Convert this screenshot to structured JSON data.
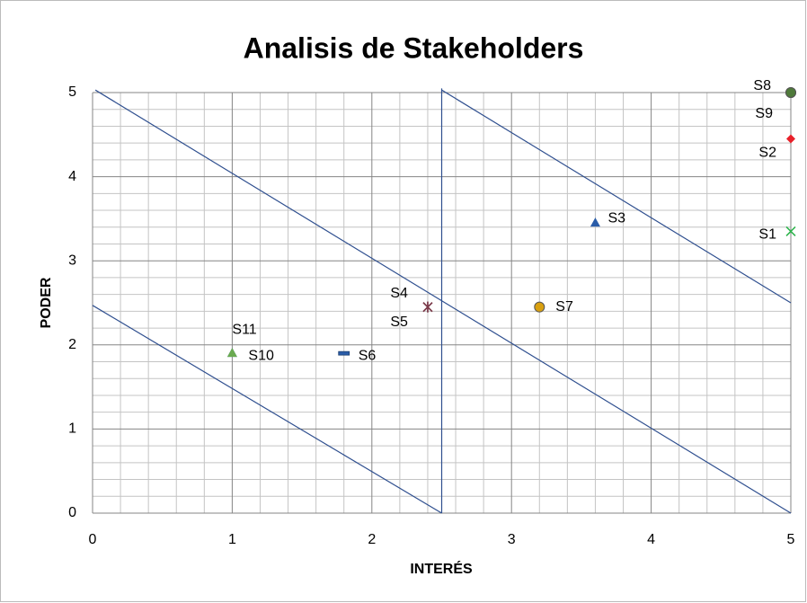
{
  "chart_data": {
    "type": "scatter",
    "title": "Analisis de Stakeholders",
    "xlabel": "INTERÉS",
    "ylabel": "PODER",
    "xlim": [
      0,
      5
    ],
    "ylim": [
      0,
      5
    ],
    "xticks": [
      0,
      1,
      2,
      3,
      4,
      5
    ],
    "yticks": [
      0,
      1,
      2,
      3,
      4,
      5
    ],
    "grid": true,
    "series": [
      {
        "name": "S1",
        "color": "#2bb34a",
        "marker": "x",
        "x": [
          5
        ],
        "values": [
          3.35
        ]
      },
      {
        "name": "S2",
        "color": "#e8202a",
        "marker": "diamond",
        "x": [
          5
        ],
        "values": [
          4.45
        ]
      },
      {
        "name": "S3",
        "color": "#2a5ca8",
        "marker": "triangle",
        "x": [
          3.6
        ],
        "values": [
          3.45
        ]
      },
      {
        "name": "S4",
        "color": "#7b3a4a",
        "marker": "star",
        "x": [
          2.4
        ],
        "values": [
          2.45
        ]
      },
      {
        "name": "S5",
        "color": "#7b3a4a",
        "marker": "star",
        "x": [
          2.4
        ],
        "values": [
          2.45
        ]
      },
      {
        "name": "S6",
        "color": "#2a5ca8",
        "marker": "dash",
        "x": [
          1.8
        ],
        "values": [
          1.9
        ]
      },
      {
        "name": "S7",
        "color": "#d9a010",
        "marker": "circle",
        "x": [
          3.2
        ],
        "values": [
          2.45
        ]
      },
      {
        "name": "S9",
        "color": "#c0202a",
        "marker": "circle",
        "x": [
          5
        ],
        "values": [
          5
        ]
      },
      {
        "name": "S8",
        "color": "#4f7a3a",
        "marker": "circle",
        "x": [
          5
        ],
        "values": [
          5
        ]
      },
      {
        "name": "S10",
        "color": "#2a5ca8",
        "marker": "triangle",
        "x": [
          1
        ],
        "values": [
          1.9
        ]
      },
      {
        "name": "S11",
        "color": "#6aaa50",
        "marker": "triangle",
        "x": [
          1
        ],
        "values": [
          1.9
        ]
      }
    ],
    "lines": [
      {
        "color": "#2f4f8f",
        "x": [
          0,
          2.5
        ],
        "values": [
          2.47,
          0
        ]
      },
      {
        "color": "#2f4f8f",
        "x": [
          0.02,
          5
        ],
        "values": [
          5.03,
          0
        ]
      },
      {
        "color": "#2f4f8f",
        "x": [
          2.5,
          2.5
        ],
        "values": [
          0,
          5.05
        ]
      },
      {
        "color": "#2f4f8f",
        "x": [
          2.5,
          5
        ],
        "values": [
          5.03,
          2.5
        ]
      }
    ]
  }
}
